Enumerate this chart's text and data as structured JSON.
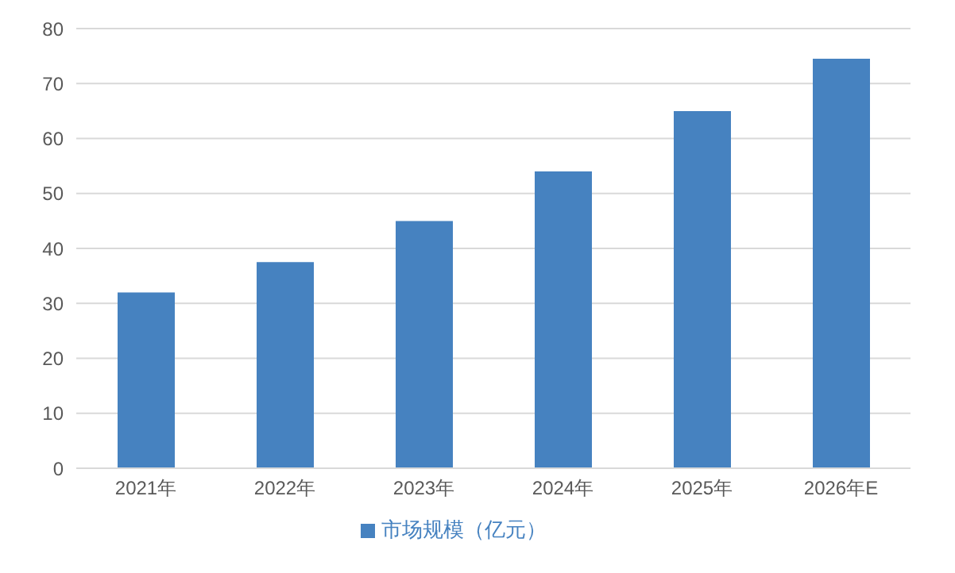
{
  "chart_data": {
    "type": "bar",
    "categories": [
      "2021年",
      "2022年",
      "2023年",
      "2024年",
      "2025年",
      "2026年E"
    ],
    "series": [
      {
        "name": "市场规模（亿元）",
        "color": "#4682c0",
        "values": [
          32,
          37.5,
          45,
          54,
          65,
          74.5
        ]
      }
    ],
    "ylim": [
      0,
      80
    ],
    "yticks": [
      0,
      10,
      20,
      30,
      40,
      50,
      60,
      70,
      80
    ],
    "grid": "y",
    "legend": "bottom"
  }
}
